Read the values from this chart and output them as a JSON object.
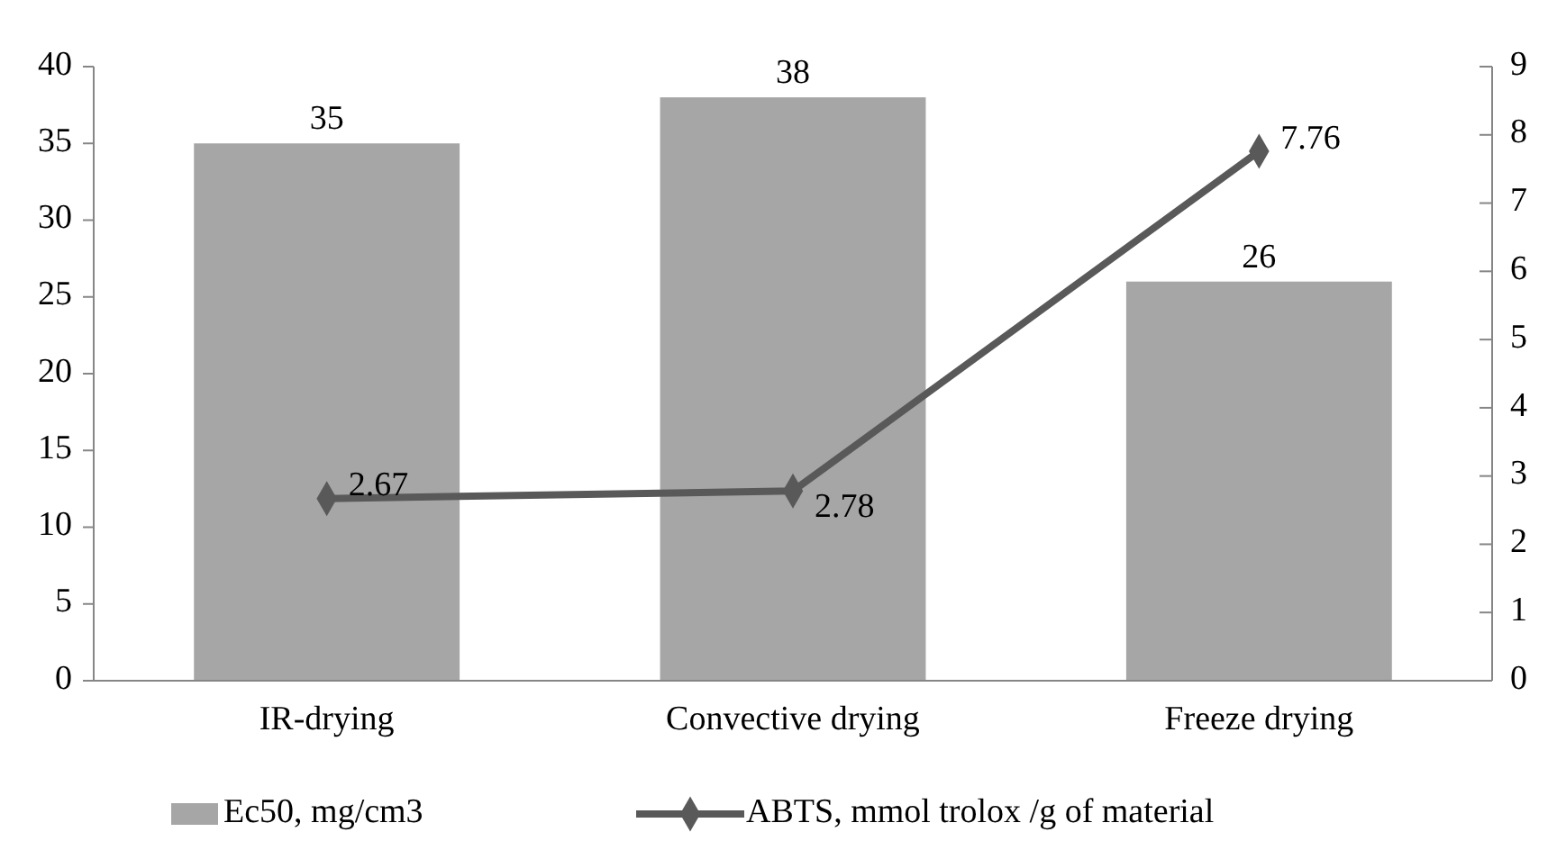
{
  "chart_data": {
    "type": "bar",
    "categories": [
      "IR-drying",
      "Convective drying",
      "Freeze drying"
    ],
    "series": [
      {
        "name": "Ec50, mg/cm3",
        "color": "#a6a6a6",
        "values": [
          35,
          38,
          26
        ]
      },
      {
        "name": "ABTS, mmol trolox /g of material",
        "type": "line",
        "axis": "y2",
        "color": "#595959",
        "values": [
          2.67,
          2.78,
          7.76
        ]
      }
    ],
    "ylim": [
      0,
      40
    ],
    "yticks": [
      0,
      5,
      10,
      15,
      20,
      25,
      30,
      35,
      40
    ],
    "y2lim": [
      0,
      9
    ],
    "y2ticks": [
      0,
      1,
      2,
      3,
      4,
      5,
      6,
      7,
      8,
      9
    ],
    "data_labels": true,
    "legend": "bottom",
    "marker": "diamond",
    "line_style": "solid",
    "grid": false
  }
}
